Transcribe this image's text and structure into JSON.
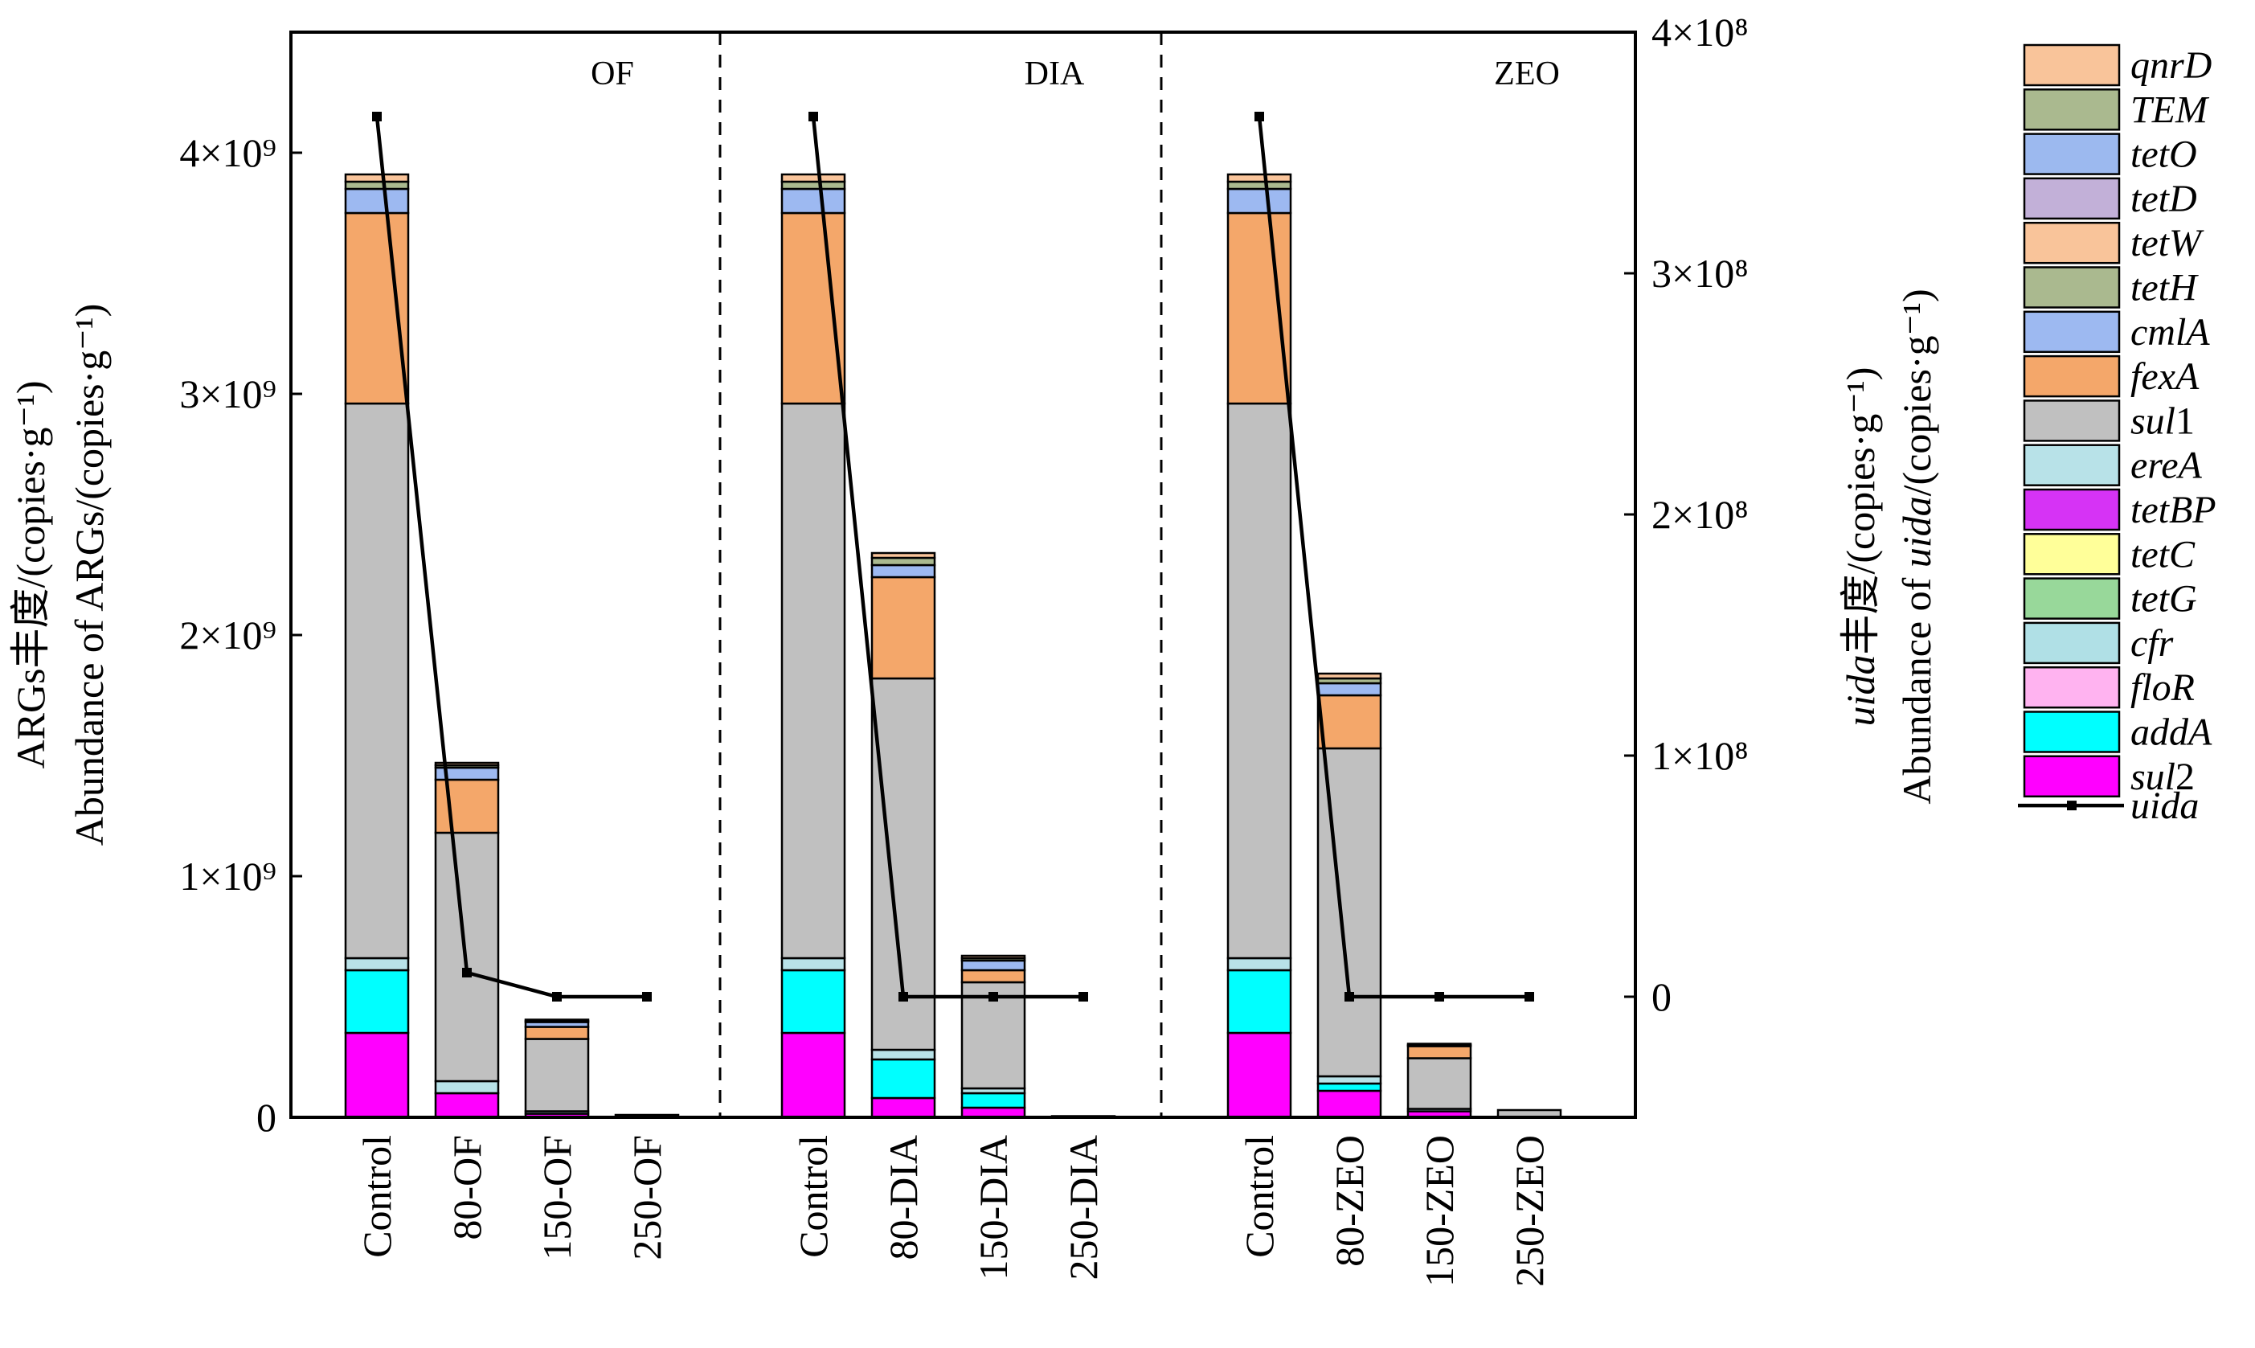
{
  "chart_data": {
    "type": "bar",
    "stacked": true,
    "groups": [
      {
        "label": "OF",
        "categories": [
          "Control",
          "80-OF",
          "150-OF",
          "250-OF"
        ]
      },
      {
        "label": "DIA",
        "categories": [
          "Control",
          "80-DIA",
          "150-DIA",
          "250-DIA"
        ]
      },
      {
        "label": "ZEO",
        "categories": [
          "Control",
          "80-ZEO",
          "150-ZEO",
          "250-ZEO"
        ]
      }
    ],
    "categories": [
      "Control",
      "80-OF",
      "150-OF",
      "250-OF",
      "Control",
      "80-DIA",
      "150-DIA",
      "250-DIA",
      "Control",
      "80-ZEO",
      "150-ZEO",
      "250-ZEO"
    ],
    "ylabel_cn": "ARGs丰度/(copies·g⁻¹)",
    "ylabel_en": "Abundance of ARGs/(copies·g⁻¹)",
    "y2label_cn_italic": "uida",
    "y2label_cn_rest": "丰度/(copies·g⁻¹)",
    "y2label_en_pre": "Abundance of ",
    "y2label_en_italic": "uida",
    "y2label_en_post": "/(copies·g⁻¹)",
    "ylim": [
      0,
      4500000000
    ],
    "y2lim": [
      -50000000,
      400000000
    ],
    "yticks": [
      {
        "value": 0,
        "label": "0"
      },
      {
        "value": 1000000000,
        "label": "1×10⁹"
      },
      {
        "value": 2000000000,
        "label": "2×10⁹"
      },
      {
        "value": 3000000000,
        "label": "3×10⁹"
      },
      {
        "value": 4000000000,
        "label": "4×10⁹"
      }
    ],
    "y2ticks": [
      {
        "value": 0,
        "label": "0"
      },
      {
        "value": 100000000,
        "label": "1×10⁸"
      },
      {
        "value": 200000000,
        "label": "2×10⁸"
      },
      {
        "value": 300000000,
        "label": "3×10⁸"
      },
      {
        "value": 400000000,
        "label": "4×10⁸"
      }
    ],
    "legend_position": "right",
    "series": [
      {
        "name": "sul2",
        "color": "#ff00ff",
        "values": [
          350000000,
          100000000,
          15000000,
          0,
          350000000,
          80000000,
          40000000,
          0,
          350000000,
          110000000,
          25000000,
          0
        ]
      },
      {
        "name": "addA",
        "color": "#00ffff",
        "values": [
          260000000,
          0,
          0,
          0,
          260000000,
          160000000,
          60000000,
          0,
          260000000,
          30000000,
          0,
          0
        ]
      },
      {
        "name": "floR",
        "color": "#ffb3f0",
        "values": [
          0,
          0,
          0,
          0,
          0,
          0,
          0,
          0,
          0,
          0,
          0,
          0
        ]
      },
      {
        "name": "cfr",
        "color": "#b0e0e6",
        "values": [
          0,
          0,
          0,
          0,
          0,
          0,
          0,
          0,
          0,
          0,
          0,
          0
        ]
      },
      {
        "name": "tetG",
        "color": "#98d89a",
        "values": [
          0,
          0,
          0,
          0,
          0,
          0,
          0,
          0,
          0,
          0,
          0,
          0
        ]
      },
      {
        "name": "tetC",
        "color": "#ffff99",
        "values": [
          0,
          0,
          0,
          0,
          0,
          0,
          0,
          0,
          0,
          0,
          0,
          0
        ]
      },
      {
        "name": "tetBP",
        "color": "#d633f5",
        "values": [
          0,
          0,
          0,
          0,
          0,
          0,
          0,
          0,
          0,
          0,
          0,
          0
        ]
      },
      {
        "name": "ereA",
        "color": "#b8e2e8",
        "values": [
          50000000,
          50000000,
          10000000,
          0,
          50000000,
          40000000,
          20000000,
          0,
          50000000,
          30000000,
          10000000,
          0
        ]
      },
      {
        "name": "sul1",
        "color": "#c0c0c0",
        "values": [
          2300000000,
          1030000000,
          300000000,
          10000000,
          2300000000,
          1540000000,
          440000000,
          5000000,
          2300000000,
          1360000000,
          210000000,
          30000000
        ]
      },
      {
        "name": "fexA",
        "color": "#f4a76a",
        "values": [
          790000000,
          220000000,
          50000000,
          0,
          790000000,
          420000000,
          50000000,
          0,
          790000000,
          220000000,
          50000000,
          0
        ]
      },
      {
        "name": "cmlA",
        "color": "#9db9f1",
        "values": [
          100000000,
          50000000,
          20000000,
          0,
          100000000,
          50000000,
          40000000,
          0,
          100000000,
          50000000,
          0,
          0
        ]
      },
      {
        "name": "tetH",
        "color": "#aab98f",
        "values": [
          0,
          0,
          0,
          0,
          0,
          0,
          0,
          0,
          0,
          0,
          0,
          0
        ]
      },
      {
        "name": "tetW",
        "color": "#f9c49a",
        "values": [
          0,
          0,
          0,
          0,
          0,
          0,
          0,
          0,
          0,
          0,
          0,
          0
        ]
      },
      {
        "name": "tetD",
        "color": "#c2b0d8",
        "values": [
          0,
          0,
          0,
          0,
          0,
          0,
          0,
          0,
          0,
          0,
          0,
          0
        ]
      },
      {
        "name": "tetO",
        "color": "#9cb9ef",
        "values": [
          0,
          0,
          0,
          0,
          0,
          0,
          0,
          0,
          0,
          0,
          0,
          0
        ]
      },
      {
        "name": "TEM",
        "color": "#aab98f",
        "values": [
          30000000,
          10000000,
          5000000,
          0,
          30000000,
          30000000,
          10000000,
          0,
          30000000,
          20000000,
          5000000,
          0
        ]
      },
      {
        "name": "qnrD",
        "color": "#f9c49a",
        "values": [
          30000000,
          10000000,
          5000000,
          0,
          30000000,
          20000000,
          10000000,
          0,
          30000000,
          20000000,
          5000000,
          0
        ]
      }
    ],
    "legend": [
      {
        "name": "qnrD",
        "color": "#f9c49a",
        "label_plain": "qnrD",
        "label_suffix": ""
      },
      {
        "name": "TEM",
        "color": "#aab98f",
        "label_plain": "TEM",
        "label_suffix": ""
      },
      {
        "name": "tetO",
        "color": "#9cb9ef",
        "label_plain": "tetO",
        "label_suffix": ""
      },
      {
        "name": "tetD",
        "color": "#c2b0d8",
        "label_plain": "tetD",
        "label_suffix": ""
      },
      {
        "name": "tetW",
        "color": "#f9c49a",
        "label_plain": "tetW",
        "label_suffix": ""
      },
      {
        "name": "tetH",
        "color": "#aab98f",
        "label_plain": "tetH",
        "label_suffix": ""
      },
      {
        "name": "cmlA",
        "color": "#9db9f1",
        "label_plain": "cmlA",
        "label_suffix": ""
      },
      {
        "name": "fexA",
        "color": "#f4a76a",
        "label_plain": "fexA",
        "label_suffix": ""
      },
      {
        "name": "sul1",
        "color": "#c0c0c0",
        "label_plain": "sul",
        "label_suffix": "1"
      },
      {
        "name": "ereA",
        "color": "#b8e2e8",
        "label_plain": "ereA",
        "label_suffix": ""
      },
      {
        "name": "tetBP",
        "color": "#d633f5",
        "label_plain": "tetBP",
        "label_suffix": ""
      },
      {
        "name": "tetC",
        "color": "#ffff99",
        "label_plain": "tetC",
        "label_suffix": ""
      },
      {
        "name": "tetG",
        "color": "#98d89a",
        "label_plain": "tetG",
        "label_suffix": ""
      },
      {
        "name": "cfr",
        "color": "#b0e0e6",
        "label_plain": "cfr",
        "label_suffix": ""
      },
      {
        "name": "floR",
        "color": "#ffb3f0",
        "label_plain": "floR",
        "label_suffix": ""
      },
      {
        "name": "addA",
        "color": "#00ffff",
        "label_plain": "addA",
        "label_suffix": ""
      },
      {
        "name": "sul2",
        "color": "#ff00ff",
        "label_plain": "sul",
        "label_suffix": "2"
      }
    ],
    "line_series": {
      "name": "uida",
      "color": "#000000",
      "axis": "right",
      "values": [
        365000000,
        10000000,
        0,
        0,
        365000000,
        0,
        0,
        0,
        365000000,
        0,
        0,
        0
      ]
    }
  }
}
